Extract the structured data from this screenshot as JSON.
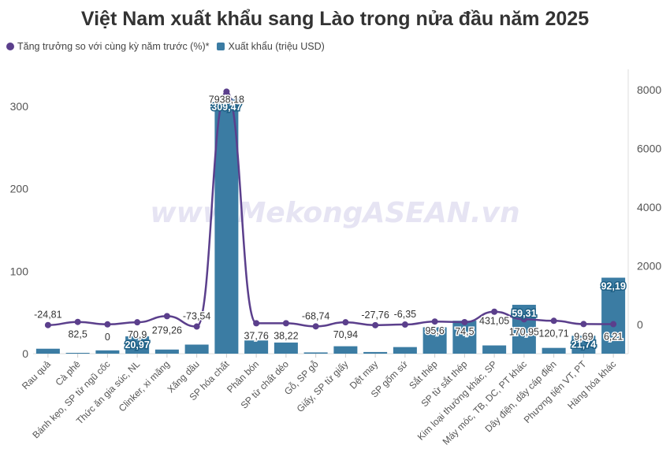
{
  "chart_data": {
    "type": "bar",
    "title": "Việt Nam xuất khẩu sang Lào trong nửa đầu năm 2025",
    "watermark": "www.MekongASEAN.vn",
    "categories": [
      "Rau quả",
      "Cà phê",
      "Bánh kẹo, SP từ ngũ cốc",
      "Thức ăn gia súc, NL",
      "Clinker, xi măng",
      "Xăng dầu",
      "SP hóa chất",
      "Phân bón",
      "SP từ chất dẻo",
      "Gỗ, SP gỗ",
      "Giấy, SP từ giấy",
      "Dệt may",
      "SP gốm sứ",
      "Sắt thép",
      "SP từ sắt thép",
      "Kim loại thường khác, SP",
      "Máy móc, TB, DC, PT khác",
      "Dây điện, dây cáp điện",
      "Phương tiện VT, PT",
      "Hàng hóa khác"
    ],
    "series": [
      {
        "name": "Xuất khẩu (triệu USD)",
        "type": "bar",
        "axis": "left",
        "color": "#3b7ca3",
        "values": [
          6,
          1,
          4,
          20.97,
          5,
          11,
          309.47,
          16,
          13.5,
          1.5,
          9,
          2,
          8,
          32,
          40,
          10,
          59.31,
          7,
          21.74,
          92.19
        ],
        "labels": [
          "",
          "",
          "",
          "20,97",
          "",
          "",
          "309,47",
          "",
          "",
          "",
          "",
          "",
          "",
          "",
          "",
          "",
          "59,31",
          "",
          "21,74",
          "92,19"
        ]
      },
      {
        "name": "Tăng trưởng so với cùng kỳ năm trước (%)*",
        "type": "line",
        "axis": "right",
        "color": "#5b3f8c",
        "values": [
          -24.81,
          82.5,
          0,
          70.9,
          279.26,
          -73.54,
          7938.18,
          37.76,
          38.22,
          -68.74,
          70.94,
          -27.76,
          -6.35,
          95.6,
          74.5,
          431.05,
          170.95,
          120.71,
          9.69,
          6.21
        ],
        "labels": [
          "-24,81",
          "82,5",
          "0",
          "70,9",
          "279,26",
          "-73,54",
          "7938,18",
          "37,76",
          "38,22",
          "-68,74",
          "70,94",
          "-27,76",
          "-6,35",
          "95,6",
          "74,5",
          "431,05",
          "170,95",
          "120,71",
          "9,69",
          "6,21"
        ]
      }
    ],
    "left_axis": {
      "ticks": [
        0,
        100,
        200,
        300
      ],
      "tick_labels": [
        "0",
        "100",
        "200",
        "300"
      ],
      "range": [
        0,
        345
      ]
    },
    "right_axis": {
      "ticks": [
        0,
        2000,
        4000,
        6000,
        8000
      ],
      "tick_labels": [
        "0",
        "2000",
        "4000",
        "6000",
        "8000"
      ],
      "range": [
        -1000,
        8700
      ]
    },
    "legend_position": "top-left",
    "grid": false
  }
}
